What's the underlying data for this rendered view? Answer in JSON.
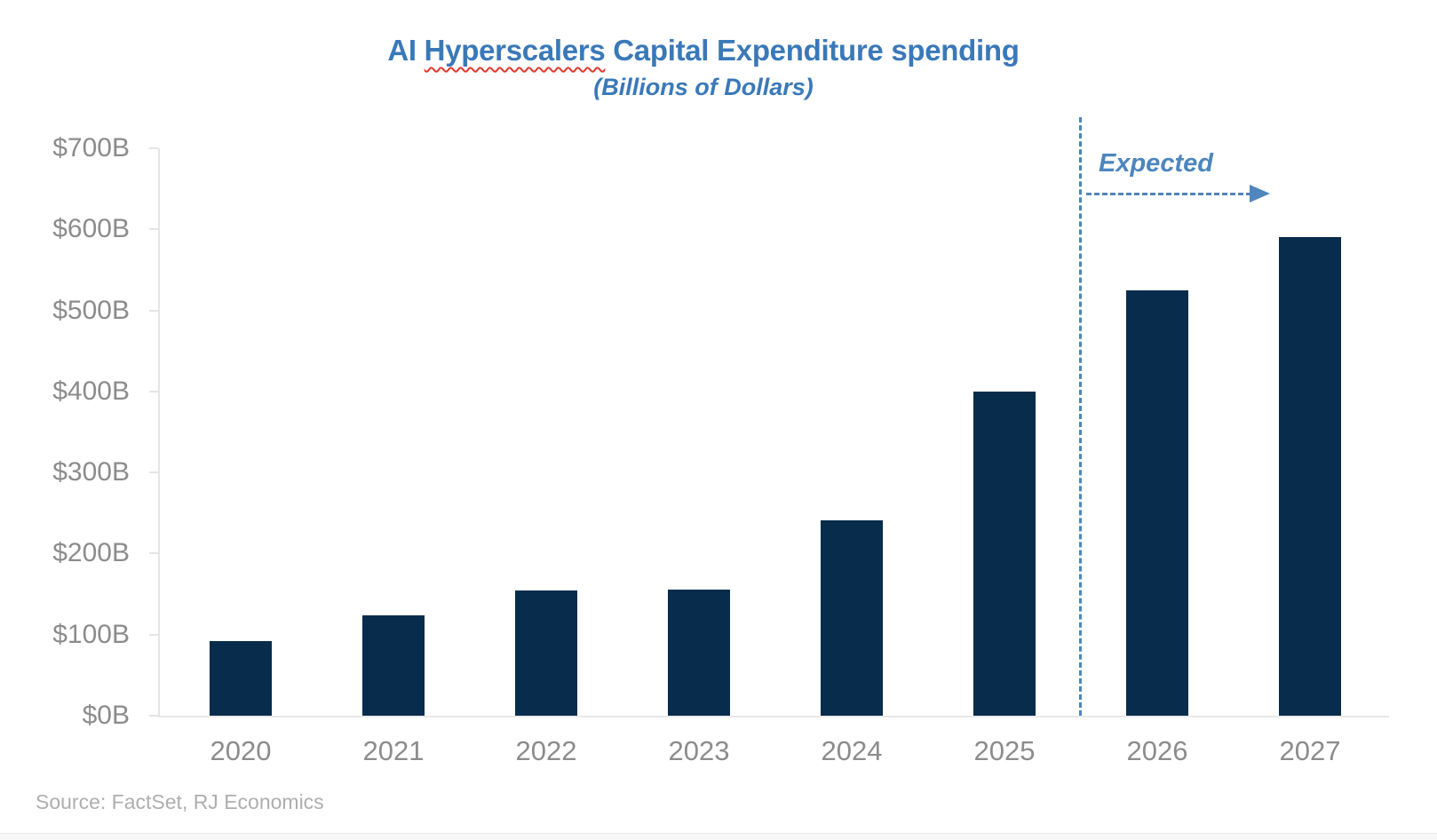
{
  "title": {
    "part1": "AI ",
    "misspelled_word": "Hyperscalers",
    "part2": " Capital Expenditure spending",
    "subtitle": "(Billions of Dollars)"
  },
  "annotation": {
    "label": "Expected"
  },
  "source": {
    "text": "Source: FactSet, RJ Economics"
  },
  "colors": {
    "bar": "#072c4c",
    "title_blue": "#3a79b8",
    "annotation_blue": "#4e86bd",
    "axis_text_gray": "#8c8c8c",
    "source_gray": "#aeaeae",
    "axis_line_gray": "#e5e5e5",
    "squiggle_red": "#e0392e"
  },
  "chart_data": {
    "type": "bar",
    "title": "AI Hyperscalers Capital Expenditure spending",
    "subtitle": "(Billions of Dollars)",
    "unit": "Billions of US Dollars",
    "categories": [
      "2020",
      "2021",
      "2022",
      "2023",
      "2024",
      "2025",
      "2026",
      "2027"
    ],
    "values": [
      92,
      124,
      155,
      156,
      241,
      400,
      525,
      590
    ],
    "expected_categories": [
      "2026",
      "2027"
    ],
    "expected_divider_between": [
      "2025",
      "2026"
    ],
    "y_ticks_top_down": [
      "$700B",
      "$600B",
      "$500B",
      "$400B",
      "$300B",
      "$200B",
      "$100B",
      "$0B"
    ],
    "ylim": [
      0,
      700
    ],
    "y_tick_interval": 100,
    "grid": false,
    "legend": false,
    "bar_color": "#072c4c",
    "xlabel": "",
    "ylabel": ""
  }
}
